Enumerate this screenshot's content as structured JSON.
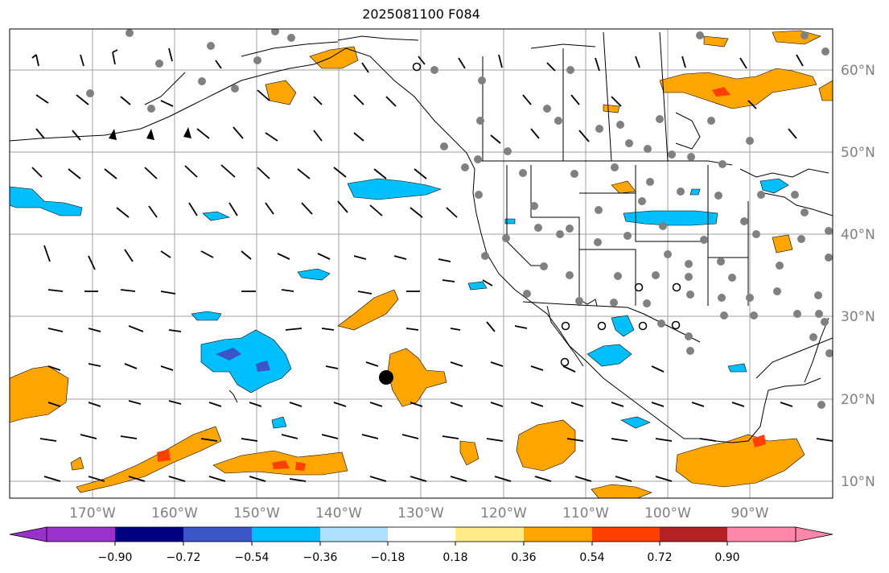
{
  "title": "2025081100 F084",
  "map": {
    "lon_range": [
      -180,
      -80
    ],
    "lat_range": [
      8,
      65
    ],
    "lon_ticks": [
      "170°W",
      "160°W",
      "150°W",
      "140°W",
      "130°W",
      "120°W",
      "110°W",
      "100°W",
      "90°W"
    ],
    "lat_ticks": [
      "10°N",
      "20°N",
      "30°N",
      "40°N",
      "50°N",
      "60°N"
    ],
    "grid": true
  },
  "colorbar": {
    "ticks": [
      "−0.90",
      "−0.72",
      "−0.54",
      "−0.36",
      "−0.18",
      "0.18",
      "0.36",
      "0.54",
      "0.72",
      "0.90"
    ],
    "colors": [
      "#9932CC",
      "#000080",
      "#3A55C8",
      "#00BFFF",
      "#ADE0FF",
      "#FFFFFF",
      "#FFEB8A",
      "#FFA500",
      "#FF4000",
      "#B22222",
      "#FF88AA"
    ]
  },
  "marker": {
    "label": "",
    "lon": -134.5,
    "lat": 22.5
  }
}
